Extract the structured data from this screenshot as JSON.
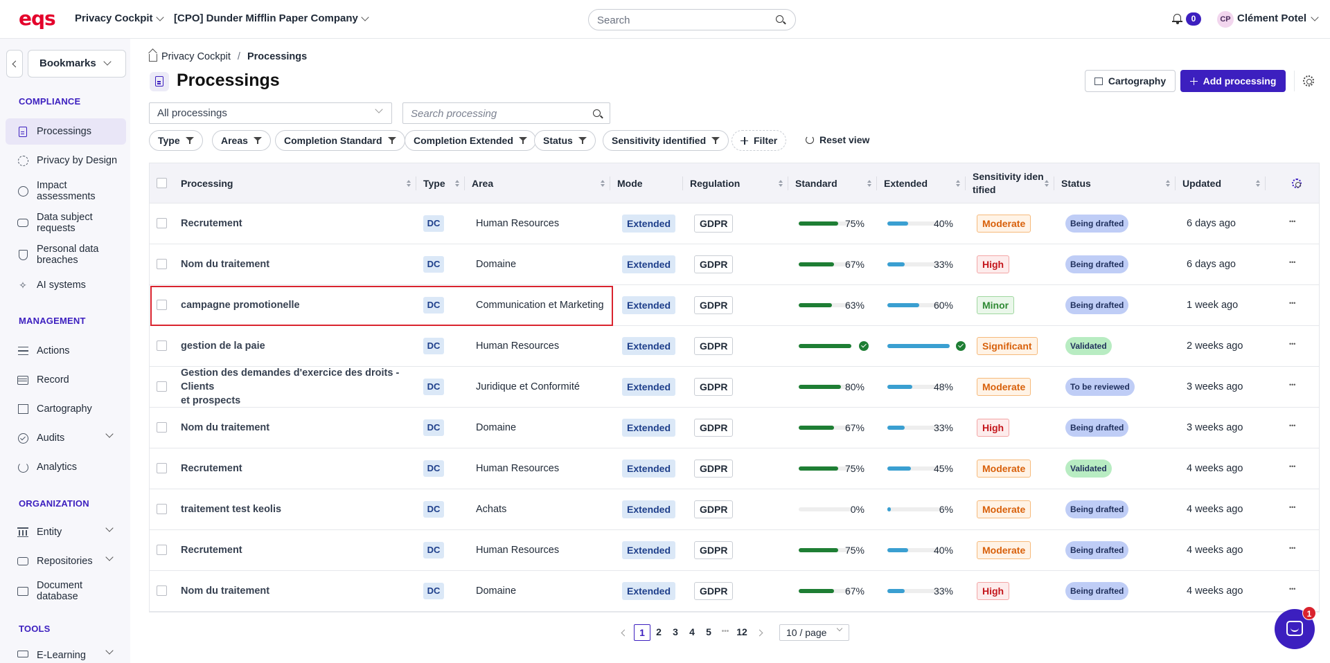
{
  "header": {
    "logo": "eqs",
    "app": "Privacy Cockpit",
    "organization": "[CPO] Dunder Mifflin Paper Company",
    "search_placeholder": "Search",
    "notifications": "0",
    "user_initials": "CP",
    "user_name": "Clément Potel"
  },
  "sidebar": {
    "bookmarks": "Bookmarks",
    "compliance_title": "COMPLIANCE",
    "compliance": [
      {
        "label": "Processings",
        "icon": "document-icon"
      },
      {
        "label": "Privacy by Design",
        "icon": "design-icon"
      },
      {
        "label": "Impact\nassessments",
        "icon": "impact-icon"
      },
      {
        "label": "Data subject\nrequests",
        "icon": "chat-icon"
      },
      {
        "label": "Personal data\nbreaches",
        "icon": "shield-icon"
      },
      {
        "label": "AI systems",
        "icon": "ai-icon"
      }
    ],
    "management_title": "MANAGEMENT",
    "management": [
      {
        "label": "Actions",
        "icon": "list-icon"
      },
      {
        "label": "Record",
        "icon": "table-icon"
      },
      {
        "label": "Cartography",
        "icon": "map-icon"
      },
      {
        "label": "Audits",
        "icon": "check-circle-icon"
      },
      {
        "label": "Analytics",
        "icon": "pie-icon"
      }
    ],
    "organization_title": "ORGANIZATION",
    "organization": [
      {
        "label": "Entity",
        "icon": "building-icon"
      },
      {
        "label": "Repositories",
        "icon": "stack-icon"
      },
      {
        "label": "Document\ndatabase",
        "icon": "folder-icon"
      }
    ],
    "tools_title": "TOOLS",
    "tools": [
      {
        "label": "E-Learning",
        "icon": "graduation-cap-icon"
      }
    ]
  },
  "breadcrumb": {
    "home": "Privacy Cockpit",
    "separator": "/",
    "current": "Processings"
  },
  "page": {
    "title": "Processings",
    "cartography_button": "Cartography",
    "add_button": "Add processing",
    "filter_select": "All processings",
    "search_placeholder": "Search processing",
    "filters": [
      "Type",
      "Areas",
      "Completion Standard",
      "Completion Extended",
      "Status",
      "Sensitivity identified"
    ],
    "add_filter": "Filter",
    "reset_view": "Reset view"
  },
  "table": {
    "columns": {
      "processing": "Processing",
      "type": "Type",
      "area": "Area",
      "mode": "Mode",
      "regulation": "Regulation",
      "standard": "Standard",
      "extended": "Extended",
      "sensitivity": "Sensitivity iden\ntified",
      "status": "Status",
      "updated": "Updated"
    },
    "rows": [
      {
        "name": "Recrutement",
        "type": "DC",
        "area": "Human Resources",
        "mode": "Extended",
        "regulation": "GDPR",
        "standard": 75,
        "standard_label": "75%",
        "extended": 40,
        "extended_label": "40%",
        "sensitivity": "Moderate",
        "status": "Being drafted",
        "updated": "6 days ago"
      },
      {
        "name": "Nom du traitement",
        "type": "DC",
        "area": "Domaine",
        "mode": "Extended",
        "regulation": "GDPR",
        "standard": 67,
        "standard_label": "67%",
        "extended": 33,
        "extended_label": "33%",
        "sensitivity": "High",
        "status": "Being drafted",
        "updated": "6 days ago"
      },
      {
        "name": "campagne promotionelle",
        "type": "DC",
        "area": "Communication et Marketing",
        "mode": "Extended",
        "regulation": "GDPR",
        "standard": 63,
        "standard_label": "63%",
        "extended": 60,
        "extended_label": "60%",
        "sensitivity": "Minor",
        "status": "Being drafted",
        "updated": "1 week ago"
      },
      {
        "name": "gestion de la paie",
        "type": "DC",
        "area": "Human Resources",
        "mode": "Extended",
        "regulation": "GDPR",
        "standard": 100,
        "standard_label": "",
        "extended": 100,
        "extended_label": "",
        "sensitivity": "Significant",
        "status": "Validated",
        "updated": "2 weeks ago"
      },
      {
        "name": "Gestion des demandes d'exercice des droits - Clients\net prospects",
        "type": "DC",
        "area": "Juridique et Conformité",
        "mode": "Extended",
        "regulation": "GDPR",
        "standard": 80,
        "standard_label": "80%",
        "extended": 48,
        "extended_label": "48%",
        "sensitivity": "Moderate",
        "status": "To be reviewed",
        "updated": "3 weeks ago"
      },
      {
        "name": "Nom du traitement",
        "type": "DC",
        "area": "Domaine",
        "mode": "Extended",
        "regulation": "GDPR",
        "standard": 67,
        "standard_label": "67%",
        "extended": 33,
        "extended_label": "33%",
        "sensitivity": "High",
        "status": "Being drafted",
        "updated": "3 weeks ago"
      },
      {
        "name": "Recrutement",
        "type": "DC",
        "area": "Human Resources",
        "mode": "Extended",
        "regulation": "GDPR",
        "standard": 75,
        "standard_label": "75%",
        "extended": 45,
        "extended_label": "45%",
        "sensitivity": "Moderate",
        "status": "Validated",
        "updated": "4 weeks ago"
      },
      {
        "name": "traitement test keolis",
        "type": "DC",
        "area": "Achats",
        "mode": "Extended",
        "regulation": "GDPR",
        "standard": 0,
        "standard_label": "0%",
        "extended": 6,
        "extended_label": "6%",
        "sensitivity": "Moderate",
        "status": "Being drafted",
        "updated": "4 weeks ago"
      },
      {
        "name": "Recrutement",
        "type": "DC",
        "area": "Human Resources",
        "mode": "Extended",
        "regulation": "GDPR",
        "standard": 75,
        "standard_label": "75%",
        "extended": 40,
        "extended_label": "40%",
        "sensitivity": "Moderate",
        "status": "Being drafted",
        "updated": "4 weeks ago"
      },
      {
        "name": "Nom du traitement",
        "type": "DC",
        "area": "Domaine",
        "mode": "Extended",
        "regulation": "GDPR",
        "standard": 67,
        "standard_label": "67%",
        "extended": 33,
        "extended_label": "33%",
        "sensitivity": "High",
        "status": "Being drafted",
        "updated": "4 weeks ago"
      }
    ]
  },
  "pagination": {
    "pages": [
      "1",
      "2",
      "3",
      "4",
      "5",
      "•••",
      "12"
    ],
    "current": "1",
    "per_page": "10 / page"
  },
  "help": {
    "count": "1"
  },
  "colors": {
    "brand": "#3c1fbf",
    "logo": "#e4002b",
    "standard_bar": "#1e7e34",
    "extended_bar": "#3a9fd1",
    "sensitivity": {
      "Moderate": {
        "color": "#d8600a",
        "bg": "#fff3e6",
        "border": "#f6b97a"
      },
      "High": {
        "color": "#c4161c",
        "bg": "#fdecec",
        "border": "#f3a5a5"
      },
      "Minor": {
        "color": "#2f8a34",
        "bg": "#eaf7ea",
        "border": "#9fd79f"
      },
      "Significant": {
        "color": "#d8600a",
        "bg": "#fff3e6",
        "border": "#f6b97a"
      }
    },
    "status": {
      "Being drafted": "#bfcdf6",
      "Validated": "#b8ecc2",
      "To be reviewed": "#bfcdf6"
    }
  }
}
